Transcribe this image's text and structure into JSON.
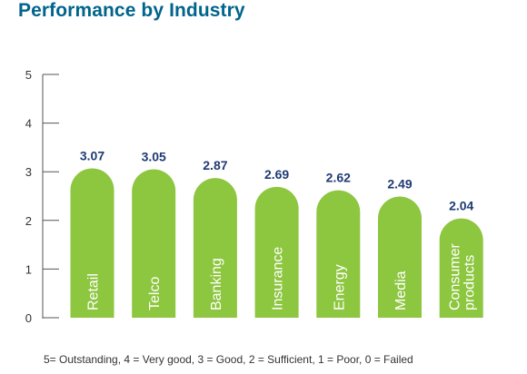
{
  "colors": {
    "title": "#00648c",
    "bar": "#8dc63f",
    "value_label": "#1f3b73",
    "axis": "#555555",
    "bar_label": "#ffffff"
  },
  "footnote": "5= Outstanding, 4 = Very good, 3 = Good, 2 = Sufficient, 1 = Poor, 0 = Failed",
  "chart_data": {
    "type": "bar",
    "title": "Performance by Industry",
    "xlabel": "",
    "ylabel": "",
    "ylim": [
      0,
      5
    ],
    "yticks": [
      0,
      1,
      2,
      3,
      4,
      5
    ],
    "grid": false,
    "categories": [
      [
        "Retail"
      ],
      [
        "Telco"
      ],
      [
        "Banking"
      ],
      [
        "Insurance"
      ],
      [
        "Energy"
      ],
      [
        "Media"
      ],
      [
        "Consumer",
        "products"
      ]
    ],
    "values": [
      3.07,
      3.05,
      2.87,
      2.69,
      2.62,
      2.49,
      2.04
    ],
    "value_labels": [
      "3.07",
      "3.05",
      "2.87",
      "2.69",
      "2.62",
      "2.49",
      "2.04"
    ]
  }
}
